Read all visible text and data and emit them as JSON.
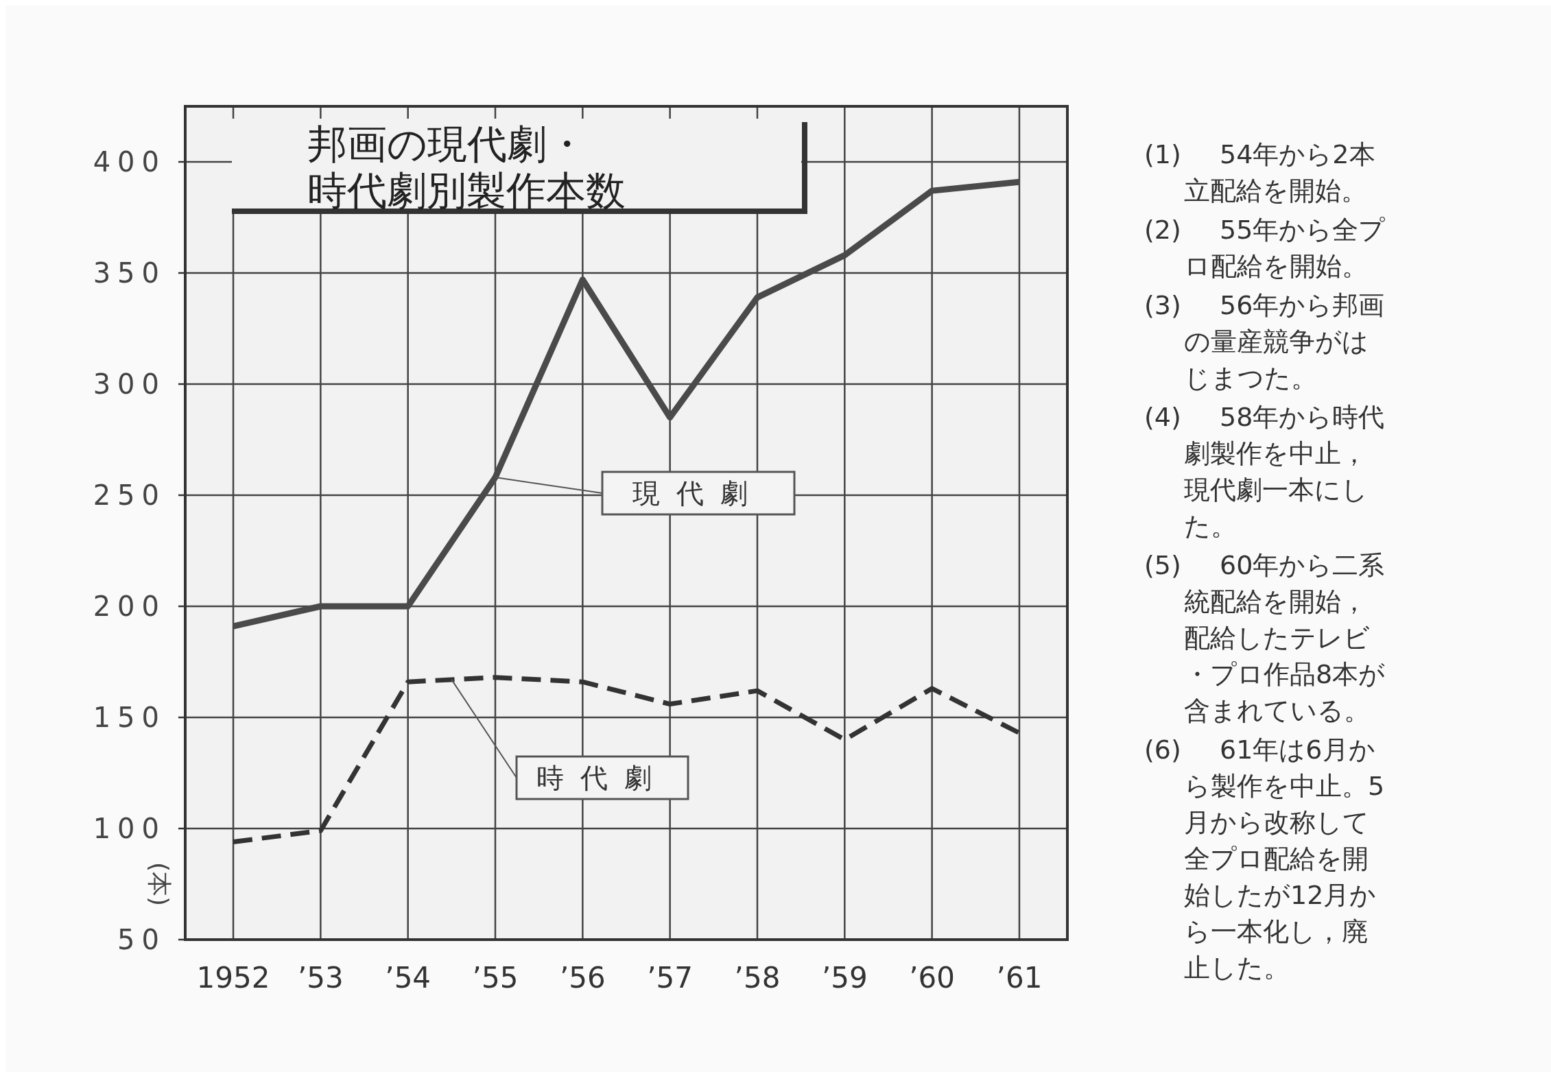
{
  "chart_data": {
    "type": "line",
    "title": "邦画の現代劇・時代劇別製作本数",
    "ylabel": "(本)",
    "categories": [
      "1952",
      "’53",
      "’54",
      "’55",
      "’56",
      "’57",
      "’58",
      "’59",
      "’60",
      "’61"
    ],
    "series": [
      {
        "name": "現代劇",
        "color": "#4a4a4a",
        "line_style": "solid",
        "values": [
          191,
          200,
          200,
          258,
          347,
          285,
          339,
          358,
          387,
          391
        ]
      },
      {
        "name": "時代劇",
        "color": "#333333",
        "line_style": "dashed",
        "values": [
          94,
          99,
          166,
          168,
          166,
          156,
          162,
          140,
          163,
          143
        ]
      }
    ],
    "ylim": [
      50,
      425
    ],
    "yticks": [
      50,
      100,
      150,
      200,
      250,
      300,
      350,
      400
    ],
    "grid": true,
    "marker": "none",
    "annotations": [
      "(1)　54年から2本立配給を開始。",
      "(2)　55年から全プロ配給を開始。",
      "(3)　56年から邦画の量産競争がはじまつた。",
      "(4)　58年から時代劇製作を中止，現代劇一本にした。",
      "(5)　60年から二系統配給を開始，配給したテレビ・プロ作品8本が含まれている。",
      "(6)　61年は6月から製作を中止。5月から改称して全プロ配給を開始したが12月から一本化し，廃止した。"
    ]
  }
}
